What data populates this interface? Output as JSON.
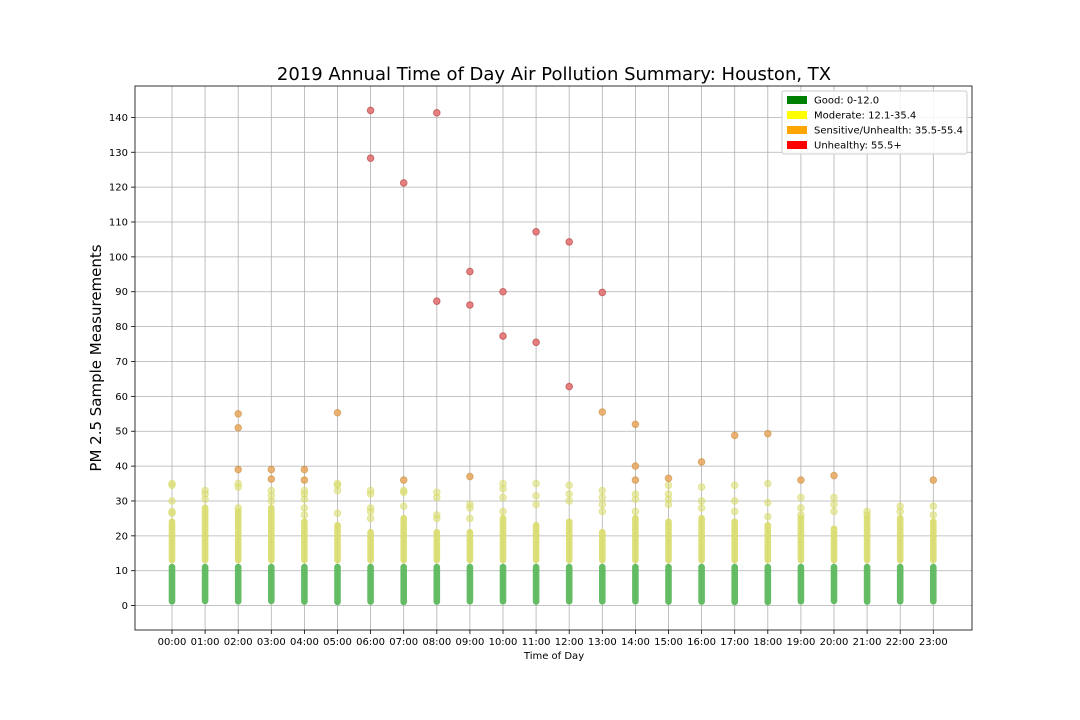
{
  "chart_data": {
    "type": "scatter",
    "title": "2019 Annual Time of Day Air Pollution Summary: Houston, TX",
    "xlabel": "Time of Day",
    "ylabel": "PM 2.5 Sample Measurements",
    "ylim": [
      -7,
      149
    ],
    "yticks": [
      0,
      10,
      20,
      30,
      40,
      50,
      60,
      70,
      80,
      90,
      100,
      110,
      120,
      130,
      140
    ],
    "grid": true,
    "legend_position": "top-right",
    "categories": [
      "00:00",
      "01:00",
      "02:00",
      "03:00",
      "04:00",
      "05:00",
      "06:00",
      "07:00",
      "08:00",
      "09:00",
      "10:00",
      "11:00",
      "12:00",
      "13:00",
      "14:00",
      "15:00",
      "16:00",
      "17:00",
      "18:00",
      "19:00",
      "20:00",
      "21:00",
      "22:00",
      "23:00"
    ],
    "legend": [
      {
        "label": "Good: 0-12.0",
        "color": "#008000"
      },
      {
        "label": "Moderate: 12.1-35.4",
        "color": "#ffff00"
      },
      {
        "label": "Sensitive/Unhealth: 35.5-55.4",
        "color": "#ffa500"
      },
      {
        "label": "Unhealthy: 55.5+",
        "color": "#ff0000"
      }
    ],
    "series": [
      {
        "category": "good",
        "color": "#5cb85c",
        "range": [
          0,
          12.0
        ],
        "min_per_hour": [
          0.3,
          0.4,
          0.3,
          0.4,
          0.2,
          0.1,
          0.2,
          0.1,
          0.2,
          0.3,
          0.3,
          0.2,
          0.3,
          0.3,
          0.3,
          0.2,
          0.2,
          0.1,
          0.1,
          0.3,
          0.4,
          0.2,
          0.3,
          0.3
        ]
      },
      {
        "category": "moderate",
        "color": "#d9dc6a",
        "range": [
          12.1,
          35.4
        ],
        "max_continuous_per_hour": [
          25,
          29,
          28,
          29,
          25,
          24,
          22,
          26,
          22,
          22,
          26,
          24,
          25,
          22,
          26,
          25,
          26,
          25,
          24,
          26,
          23,
          26,
          26,
          25
        ],
        "points": [
          [
            0,
            35.0
          ],
          [
            0,
            34.5
          ],
          [
            0,
            30.0
          ],
          [
            0,
            27.0
          ],
          [
            0,
            26.5
          ],
          [
            1,
            33.0
          ],
          [
            1,
            32.0
          ],
          [
            1,
            30.5
          ],
          [
            2,
            35.0
          ],
          [
            2,
            34.0
          ],
          [
            2,
            28.0
          ],
          [
            3,
            33.0
          ],
          [
            3,
            31.5
          ],
          [
            3,
            30.0
          ],
          [
            4,
            33.0
          ],
          [
            4,
            32.0
          ],
          [
            4,
            30.5
          ],
          [
            4,
            28.0
          ],
          [
            4,
            26.0
          ],
          [
            5,
            35.0
          ],
          [
            5,
            34.5
          ],
          [
            5,
            33.0
          ],
          [
            5,
            26.5
          ],
          [
            6,
            33.0
          ],
          [
            6,
            32.0
          ],
          [
            6,
            28.0
          ],
          [
            6,
            27.0
          ],
          [
            6,
            25.0
          ],
          [
            7,
            33.0
          ],
          [
            7,
            32.5
          ],
          [
            7,
            28.5
          ],
          [
            8,
            32.5
          ],
          [
            8,
            31.0
          ],
          [
            8,
            26.0
          ],
          [
            8,
            25.0
          ],
          [
            9,
            29.0
          ],
          [
            9,
            28.0
          ],
          [
            9,
            25.0
          ],
          [
            10,
            35.0
          ],
          [
            10,
            33.5
          ],
          [
            10,
            31.0
          ],
          [
            10,
            27.0
          ],
          [
            11,
            35.0
          ],
          [
            11,
            31.5
          ],
          [
            11,
            29.0
          ],
          [
            12,
            34.5
          ],
          [
            12,
            32.0
          ],
          [
            12,
            30.0
          ],
          [
            13,
            33.0
          ],
          [
            13,
            31.0
          ],
          [
            13,
            29.0
          ],
          [
            13,
            27.0
          ],
          [
            14,
            32.0
          ],
          [
            14,
            30.5
          ],
          [
            14,
            27.0
          ],
          [
            15,
            34.5
          ],
          [
            15,
            32.0
          ],
          [
            15,
            30.5
          ],
          [
            15,
            29.0
          ],
          [
            16,
            34.0
          ],
          [
            16,
            30.0
          ],
          [
            16,
            28.0
          ],
          [
            17,
            34.5
          ],
          [
            17,
            30.0
          ],
          [
            17,
            27.0
          ],
          [
            18,
            35.0
          ],
          [
            18,
            29.5
          ],
          [
            18,
            25.5
          ],
          [
            19,
            31.0
          ],
          [
            19,
            28.0
          ],
          [
            19,
            26.0
          ],
          [
            20,
            31.0
          ],
          [
            20,
            29.0
          ],
          [
            20,
            27.0
          ],
          [
            21,
            27.0
          ],
          [
            21,
            26.0
          ],
          [
            22,
            28.5
          ],
          [
            22,
            27.0
          ],
          [
            23,
            28.5
          ],
          [
            23,
            26.0
          ]
        ]
      },
      {
        "category": "sensitive",
        "color": "#e8a75c",
        "range": [
          35.5,
          55.4
        ],
        "points": [
          [
            2,
            55.0
          ],
          [
            2,
            51.0
          ],
          [
            2,
            39.0
          ],
          [
            3,
            39.0
          ],
          [
            3,
            36.3
          ],
          [
            4,
            39.0
          ],
          [
            4,
            36.0
          ],
          [
            5,
            55.3
          ],
          [
            7,
            36.0
          ],
          [
            9,
            37.0
          ],
          [
            13,
            55.5
          ],
          [
            14,
            52.0
          ],
          [
            14,
            40.0
          ],
          [
            14,
            36.0
          ],
          [
            15,
            36.5
          ],
          [
            16,
            41.2
          ],
          [
            17,
            48.8
          ],
          [
            18,
            49.3
          ],
          [
            19,
            36.0
          ],
          [
            20,
            37.3
          ],
          [
            23,
            36.0
          ]
        ]
      },
      {
        "category": "unhealthy",
        "color": "#e57373",
        "range": [
          55.5,
          null
        ],
        "points": [
          [
            6,
            142.0
          ],
          [
            6,
            128.3
          ],
          [
            7,
            121.2
          ],
          [
            8,
            141.3
          ],
          [
            8,
            87.3
          ],
          [
            9,
            95.8
          ],
          [
            9,
            86.2
          ],
          [
            10,
            90.0
          ],
          [
            10,
            77.3
          ],
          [
            11,
            107.2
          ],
          [
            11,
            75.5
          ],
          [
            12,
            104.3
          ],
          [
            12,
            62.8
          ],
          [
            13,
            89.8
          ]
        ]
      }
    ]
  }
}
